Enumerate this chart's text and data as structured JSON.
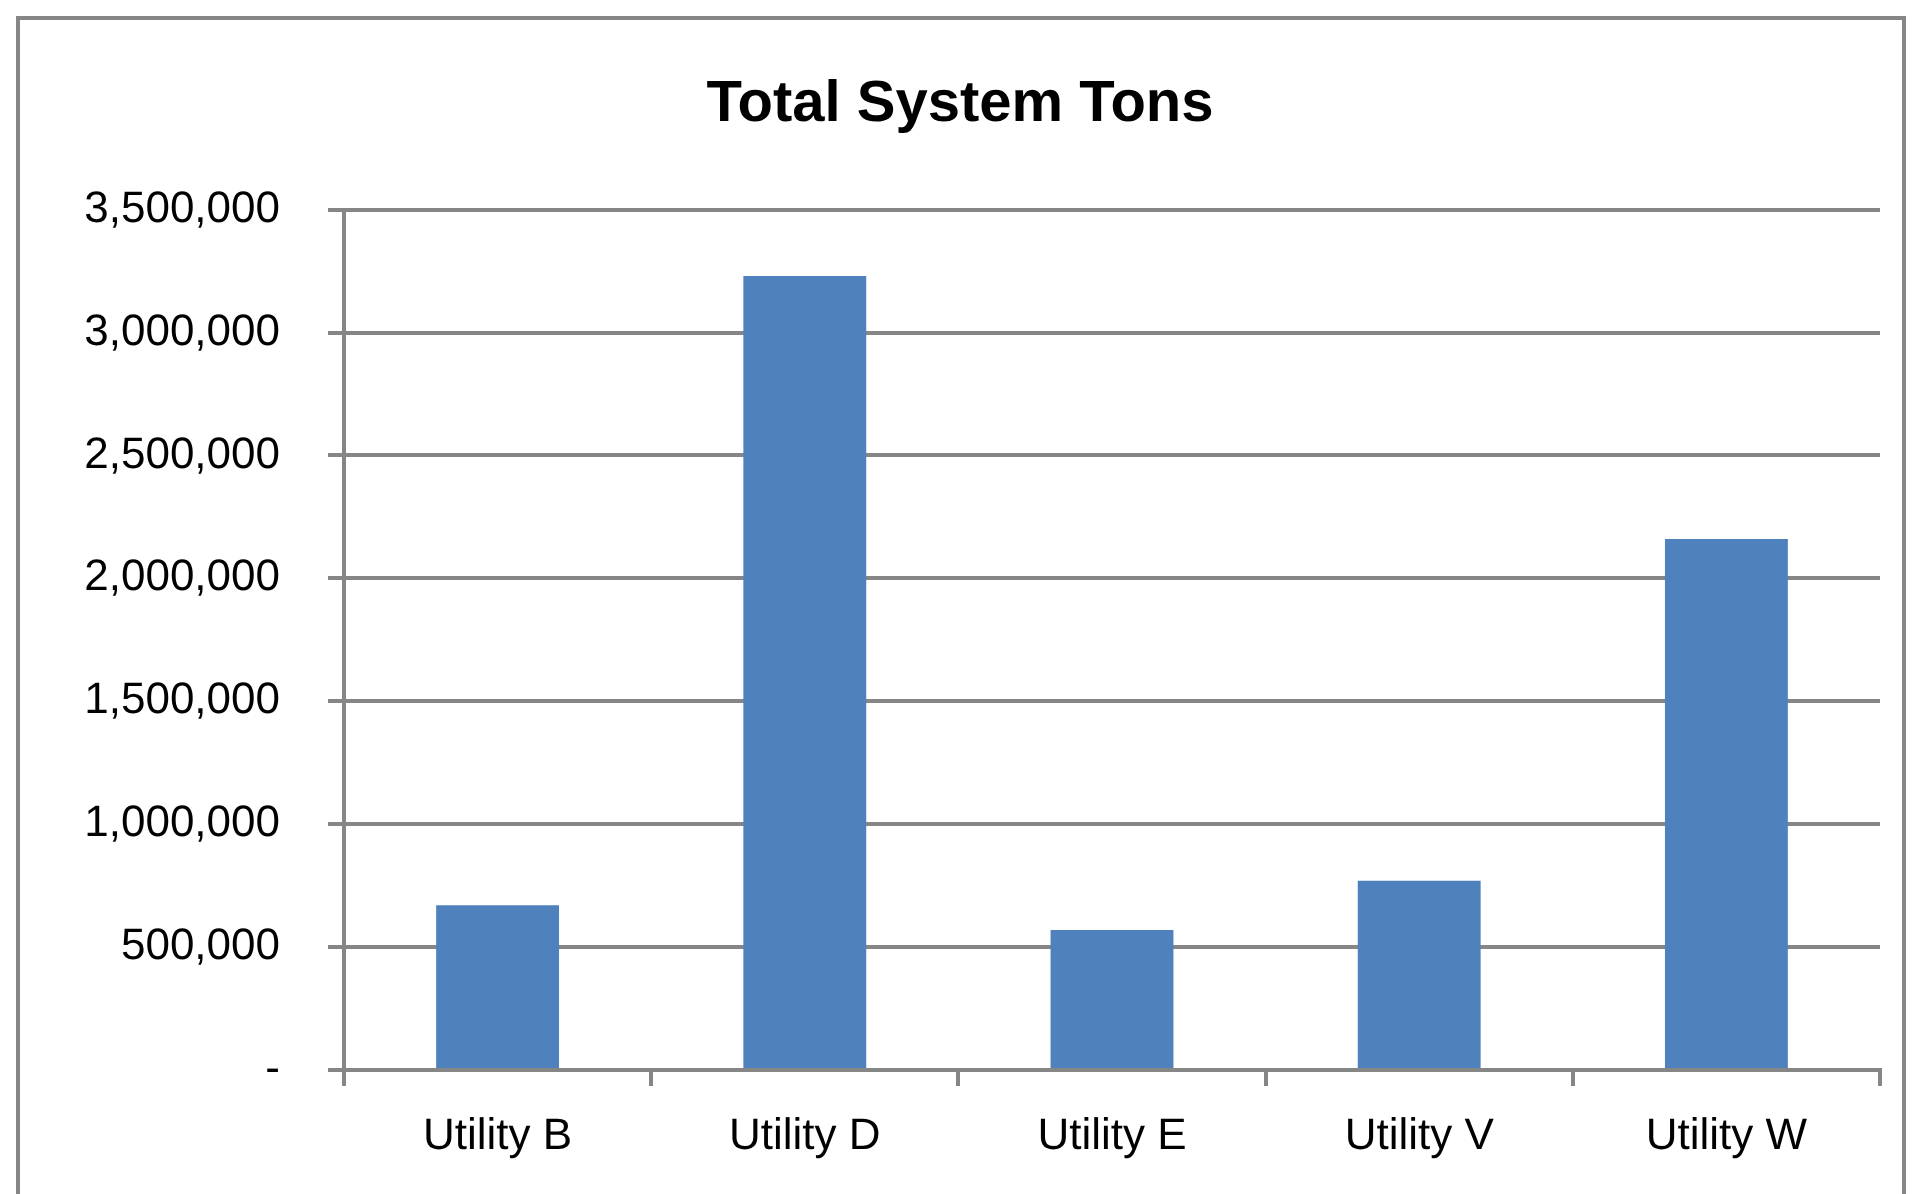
{
  "chart_data": {
    "type": "bar",
    "title": "Total System Tons",
    "categories": [
      "Utility B",
      "Utility D",
      "Utility E",
      "Utility V",
      "Utility W"
    ],
    "values": [
      670000,
      3230000,
      570000,
      770000,
      2160000
    ],
    "color": "#4f81bd",
    "ylim": [
      0,
      3500000
    ],
    "yticks": [
      {
        "value": 0,
        "label": "-"
      },
      {
        "value": 500000,
        "label": "500,000"
      },
      {
        "value": 1000000,
        "label": "1,000,000"
      },
      {
        "value": 1500000,
        "label": "1,500,000"
      },
      {
        "value": 2000000,
        "label": "2,000,000"
      },
      {
        "value": 2500000,
        "label": "2,500,000"
      },
      {
        "value": 3000000,
        "label": "3,000,000"
      },
      {
        "value": 3500000,
        "label": "3,500,000"
      }
    ],
    "grid": "y"
  }
}
